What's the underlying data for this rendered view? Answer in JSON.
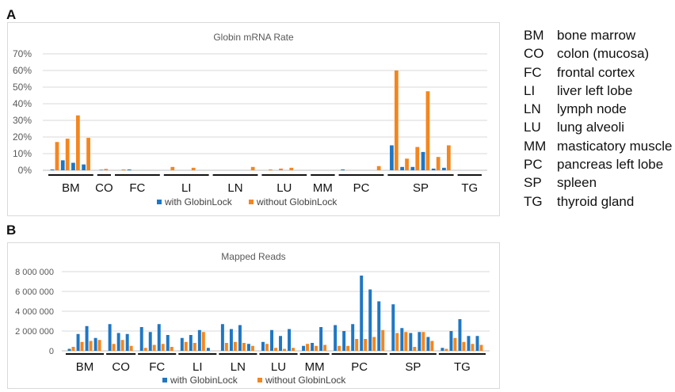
{
  "panels": {
    "a": "A",
    "b": "B"
  },
  "abbreviations": [
    {
      "abbr": "BM",
      "name": "bone marrow"
    },
    {
      "abbr": "CO",
      "name": "colon (mucosa)"
    },
    {
      "abbr": "FC",
      "name": "frontal cortex"
    },
    {
      "abbr": "LI",
      "name": "liver left lobe"
    },
    {
      "abbr": "LN",
      "name": "lymph node"
    },
    {
      "abbr": "LU",
      "name": "lung alveoli"
    },
    {
      "abbr": "MM",
      "name": "masticatory muscle"
    },
    {
      "abbr": "PC",
      "name": "pancreas left lobe"
    },
    {
      "abbr": "SP",
      "name": "spleen"
    },
    {
      "abbr": "TG",
      "name": "thyroid gland"
    }
  ],
  "colors": {
    "with": "#1f77c4",
    "without": "#f4861f",
    "grid": "#d9d9d9",
    "axis": "#bfbfbf"
  },
  "chart_data": [
    {
      "type": "bar",
      "title": "Globin mRNA Rate",
      "ylim": [
        0,
        70
      ],
      "yticks": [
        "0%",
        "10%",
        "20%",
        "30%",
        "40%",
        "50%",
        "60%",
        "70%"
      ],
      "grid": true,
      "legend_position": "bottom",
      "groups": [
        {
          "label": "BM",
          "n": 4
        },
        {
          "label": "CO",
          "n": 1
        },
        {
          "label": "FC",
          "n": 4
        },
        {
          "label": "LI",
          "n": 4
        },
        {
          "label": "LN",
          "n": 4
        },
        {
          "label": "LU",
          "n": 4
        },
        {
          "label": "MM",
          "n": 2
        },
        {
          "label": "PC",
          "n": 4
        },
        {
          "label": "SP",
          "n": 6
        },
        {
          "label": "TG",
          "n": 2
        }
      ],
      "series": [
        {
          "name": "with GlobinLock",
          "values": [
            0.5,
            6,
            4.5,
            3.5,
            0.3,
            0,
            0.5,
            0,
            0,
            0,
            0,
            0,
            0,
            0,
            0,
            0,
            0,
            0,
            0,
            0,
            0,
            0,
            0,
            0.5,
            0,
            0,
            0,
            15,
            2,
            2,
            11,
            1,
            1.5,
            0,
            0
          ]
        },
        {
          "name": "without GlobinLock",
          "values": [
            17,
            19,
            33,
            19.5,
            0.8,
            0.5,
            0,
            0,
            0,
            2,
            0,
            1.5,
            0,
            0,
            0,
            0,
            2,
            0.5,
            1,
            1.5,
            0,
            0,
            0,
            0,
            0,
            0,
            2.5,
            60,
            7,
            14,
            47.5,
            8,
            15,
            0,
            0
          ]
        }
      ]
    },
    {
      "type": "bar",
      "title": "Mapped Reads",
      "ylim": [
        0,
        8000000
      ],
      "yticks": [
        "0",
        "2 000 000",
        "4 000 000",
        "6 000 000",
        "8 000 000"
      ],
      "grid": true,
      "legend_position": "bottom",
      "groups": [
        {
          "label": "BM",
          "n": 4
        },
        {
          "label": "CO",
          "n": 3
        },
        {
          "label": "FC",
          "n": 4
        },
        {
          "label": "LI",
          "n": 4
        },
        {
          "label": "LN",
          "n": 4
        },
        {
          "label": "LU",
          "n": 4
        },
        {
          "label": "MM",
          "n": 3
        },
        {
          "label": "PC",
          "n": 6
        },
        {
          "label": "SP",
          "n": 5
        },
        {
          "label": "TG",
          "n": 5
        }
      ],
      "series": [
        {
          "name": "with GlobinLock",
          "values": [
            200000,
            1700000,
            2500000,
            1300000,
            2700000,
            1800000,
            1700000,
            2400000,
            1900000,
            2700000,
            1600000,
            1300000,
            1600000,
            2100000,
            300000,
            2700000,
            2200000,
            2600000,
            700000,
            900000,
            2100000,
            1500000,
            2200000,
            500000,
            800000,
            2400000,
            2600000,
            2000000,
            2700000,
            7600000,
            6200000,
            5000000,
            4700000,
            2300000,
            1800000,
            1900000,
            1400000,
            300000,
            2000000,
            3200000,
            1500000,
            1500000,
            1400000
          ]
        },
        {
          "name": "without GlobinLock",
          "values": [
            400000,
            900000,
            1000000,
            1100000,
            700000,
            1100000,
            500000,
            300000,
            600000,
            700000,
            400000,
            900000,
            800000,
            1900000,
            0,
            800000,
            900000,
            800000,
            500000,
            700000,
            300000,
            200000,
            300000,
            700000,
            500000,
            600000,
            500000,
            500000,
            1200000,
            1200000,
            1400000,
            2100000,
            1800000,
            1900000,
            400000,
            1900000,
            1000000,
            200000,
            1300000,
            900000,
            700000,
            600000,
            400000
          ]
        }
      ]
    }
  ]
}
